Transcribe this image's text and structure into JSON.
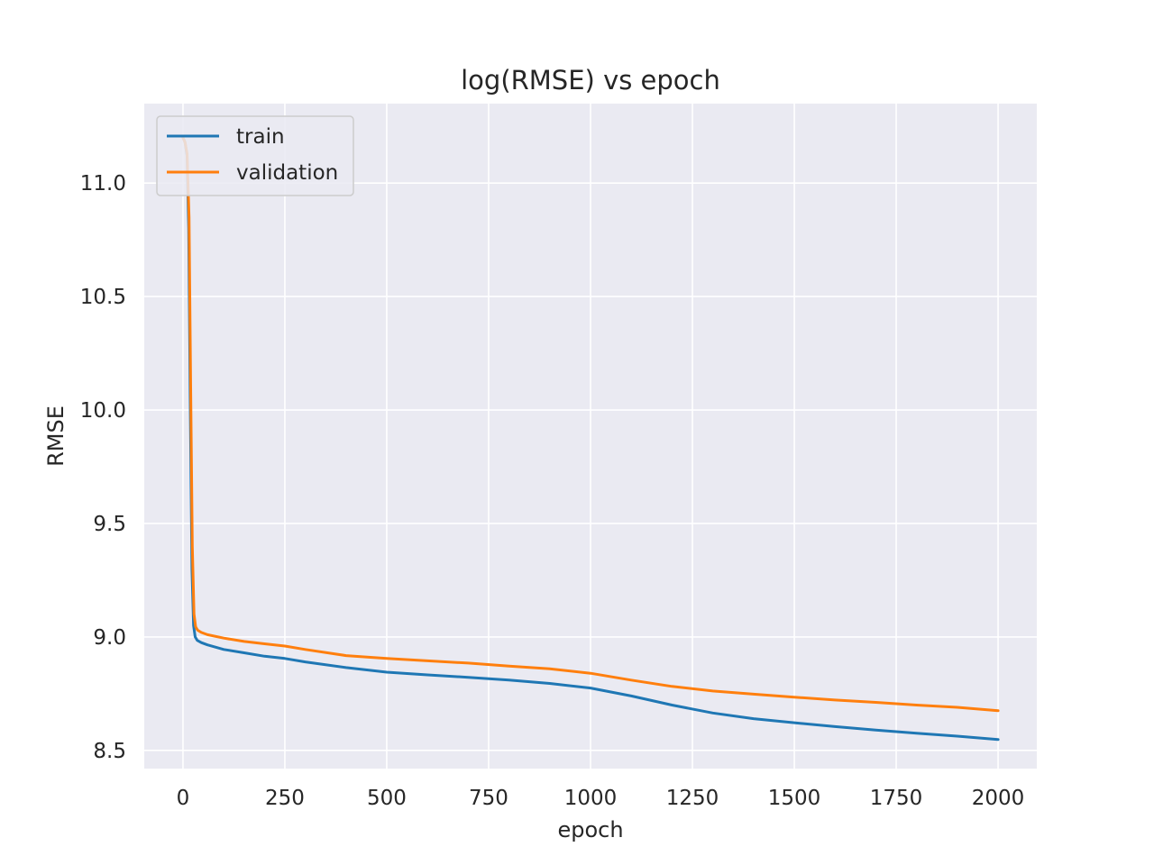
{
  "chart_data": {
    "type": "line",
    "title": "log(RMSE) vs epoch",
    "xlabel": "epoch",
    "ylabel": "RMSE",
    "xlim": [
      -95,
      2095
    ],
    "ylim": [
      8.42,
      11.35
    ],
    "xticks": [
      0,
      250,
      500,
      750,
      1000,
      1250,
      1500,
      1750,
      2000
    ],
    "xtick_labels": [
      "0",
      "250",
      "500",
      "750",
      "1000",
      "1250",
      "1500",
      "1750",
      "2000"
    ],
    "yticks": [
      8.5,
      9.0,
      9.5,
      10.0,
      10.5,
      11.0
    ],
    "ytick_labels": [
      "8.5",
      "9.0",
      "9.5",
      "10.0",
      "10.5",
      "11.0"
    ],
    "grid": true,
    "legend": "top-left",
    "series": [
      {
        "name": "train",
        "color": "#1f77b4",
        "x": [
          0,
          5,
          10,
          14,
          18,
          22,
          26,
          30,
          35,
          45,
          60,
          100,
          150,
          200,
          250,
          300,
          400,
          500,
          600,
          700,
          800,
          900,
          1000,
          1100,
          1200,
          1300,
          1400,
          1500,
          1600,
          1700,
          1800,
          1900,
          2000
        ],
        "y": [
          11.2,
          11.18,
          11.12,
          10.8,
          10.0,
          9.3,
          9.05,
          9.0,
          8.985,
          8.975,
          8.965,
          8.945,
          8.93,
          8.915,
          8.905,
          8.89,
          8.865,
          8.845,
          8.833,
          8.822,
          8.81,
          8.795,
          8.775,
          8.74,
          8.7,
          8.665,
          8.64,
          8.622,
          8.605,
          8.59,
          8.576,
          8.563,
          8.548
        ]
      },
      {
        "name": "validation",
        "color": "#ff7f0e",
        "x": [
          0,
          5,
          10,
          15,
          19,
          23,
          27,
          31,
          36,
          45,
          60,
          100,
          150,
          200,
          250,
          300,
          400,
          500,
          600,
          700,
          800,
          900,
          1000,
          1100,
          1200,
          1300,
          1400,
          1500,
          1600,
          1700,
          1800,
          1900,
          2000
        ],
        "y": [
          11.2,
          11.18,
          11.13,
          10.85,
          10.1,
          9.4,
          9.1,
          9.045,
          9.03,
          9.02,
          9.01,
          8.995,
          8.98,
          8.97,
          8.96,
          8.945,
          8.918,
          8.905,
          8.895,
          8.885,
          8.872,
          8.86,
          8.84,
          8.81,
          8.782,
          8.762,
          8.748,
          8.735,
          8.722,
          8.712,
          8.7,
          8.69,
          8.675
        ]
      }
    ]
  }
}
